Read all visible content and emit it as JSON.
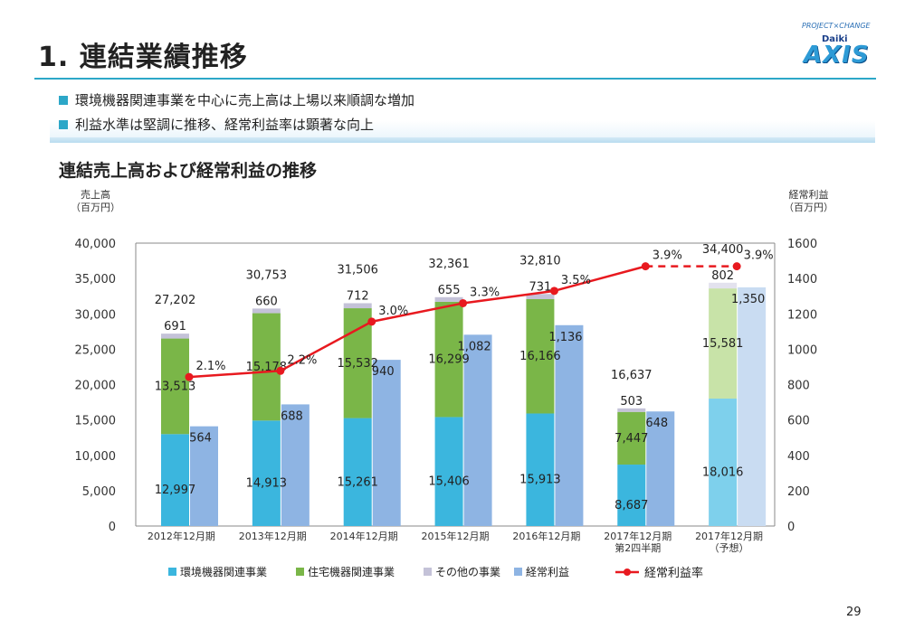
{
  "slide": {
    "title": "1. 連結業績推移",
    "bullets": [
      "環境機器関連事業を中心に売上高は上場以来順調な増加",
      "利益水準は堅調に推移、経常利益率は顕著な向上"
    ],
    "page_number": "29",
    "logo": {
      "tagline": "PROJECT×CHANGE",
      "brand_top": "Daiki",
      "brand": "AXIS"
    }
  },
  "chart_data": {
    "type": "bar",
    "title": "連結売上高および経常利益の推移",
    "ylabel": [
      "売上高",
      "（百万円）"
    ],
    "y2label": [
      "経常利益",
      "（百万円）"
    ],
    "ylim": [
      0,
      40000
    ],
    "y2lim": [
      0,
      1600
    ],
    "yticks": [
      "40,000",
      "35,000",
      "30,000",
      "25,000",
      "20,000",
      "15,000",
      "10,000",
      "5,000",
      "0"
    ],
    "y2ticks": [
      "1600",
      "1400",
      "1200",
      "1000",
      "800",
      "600",
      "400",
      "200",
      "0"
    ],
    "grid": false,
    "legend_position": "bottom",
    "categories": [
      [
        "2012年12月期"
      ],
      [
        "2013年12月期"
      ],
      [
        "2014年12月期"
      ],
      [
        "2015年12月期"
      ],
      [
        "2016年12月期"
      ],
      [
        "2017年12月期",
        "第2四半期"
      ],
      [
        "2017年12月期",
        "（予想）"
      ]
    ],
    "series": [
      {
        "name": "環境機器関連事業",
        "values": [
          12997,
          14913,
          15261,
          15406,
          15913,
          8687,
          18016
        ],
        "labels": [
          "12,997",
          "14,913",
          "15,261",
          "15,406",
          "15,913",
          "8,687",
          "18,016"
        ],
        "color": "#3bb6de"
      },
      {
        "name": "住宅機器関連事業",
        "values": [
          13513,
          15178,
          15532,
          16299,
          16166,
          7447,
          15581
        ],
        "labels": [
          "13,513",
          "15,178",
          "15,532",
          "16,299",
          "16,166",
          "7,447",
          "15,581"
        ],
        "color": "#7ab648"
      },
      {
        "name": "その他の事業",
        "values": [
          691,
          660,
          712,
          655,
          731,
          503,
          802
        ],
        "labels": [
          "691",
          "660",
          "712",
          "655",
          "731",
          "503",
          "802"
        ],
        "color": "#c4c2d8"
      },
      {
        "name": "経常利益",
        "values": [
          564,
          688,
          940,
          1082,
          1136,
          648,
          1350
        ],
        "labels": [
          "564",
          "688",
          "940",
          "1,082",
          "1,136",
          "648",
          "1,350"
        ],
        "color": "#8eb4e3",
        "axis": "right"
      },
      {
        "name": "経常利益率",
        "values": [
          2.1,
          2.2,
          3.0,
          3.3,
          3.5,
          3.9,
          3.9
        ],
        "labels": [
          "2.1%",
          "2.2%",
          "3.0%",
          "3.3%",
          "3.5%",
          "3.9%",
          "3.9%"
        ],
        "color": "#e8191f",
        "type": "line"
      }
    ],
    "totals": [
      "27,202",
      "30,753",
      "31,506",
      "32,361",
      "32,810",
      "16,637",
      "34,400"
    ],
    "forecast_colors": {
      "環境機器関連事業": "#7ed0ec",
      "住宅機器関連事業": "#c8e3a8",
      "その他の事業": "#e3e2ee",
      "経常利益": "#c9dcf2"
    },
    "forecast_index": 6
  }
}
